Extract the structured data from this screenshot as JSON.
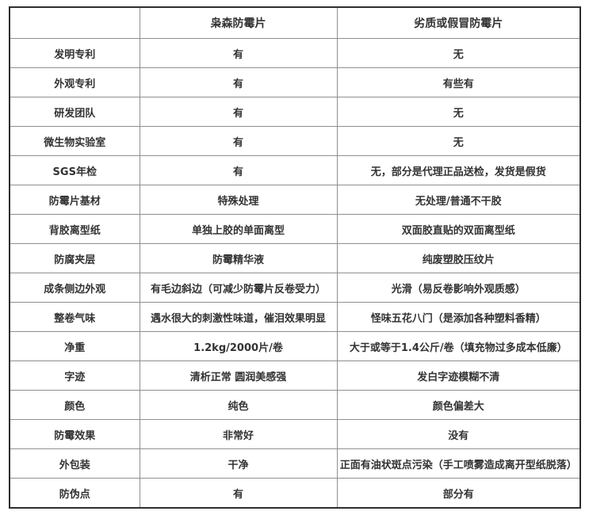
{
  "table": {
    "header": {
      "corner": "",
      "brand_col": "枭森防霉片",
      "fake_col": "劣质或假冒防霉片"
    },
    "rows": [
      {
        "label": "发明专利",
        "brand": "有",
        "fake": "无"
      },
      {
        "label": "外观专利",
        "brand": "有",
        "fake": "有些有"
      },
      {
        "label": "研发团队",
        "brand": "有",
        "fake": "无"
      },
      {
        "label": "微生物实验室",
        "brand": "有",
        "fake": "无"
      },
      {
        "label": "SGS年检",
        "brand": "有",
        "fake": "无，部分是代理正品送检，发货是假货"
      },
      {
        "label": "防霉片基材",
        "brand": "特殊处理",
        "fake": "无处理/普通不干胶"
      },
      {
        "label": "背胶离型纸",
        "brand": "单独上胶的单面离型",
        "fake": "双面胶直贴的双面离型纸"
      },
      {
        "label": "防腐夹层",
        "brand": "防霉精华液",
        "fake": "纯废塑胶压纹片"
      },
      {
        "label": "成条侧边外观",
        "brand": "有毛边斜边（可减少防霉片反卷受力）",
        "fake": "光滑（易反卷影响外观质感）"
      },
      {
        "label": "整卷气味",
        "brand": "遇水很大的刺激性味道，催泪效果明显",
        "fake": "怪味五花八门（是添加各种塑料香精）"
      },
      {
        "label": "净重",
        "brand": "1.2kg/2000片/卷",
        "fake": "大于或等于1.4公斤/卷（填充物过多成本低廉）"
      },
      {
        "label": "字迹",
        "brand": "清析正常 圆润美感强",
        "fake": "发白字迹模糊不清"
      },
      {
        "label": "颜色",
        "brand": "纯色",
        "fake": "颜色偏差大"
      },
      {
        "label": "防霉效果",
        "brand": "非常好",
        "fake": "没有"
      },
      {
        "label": "外包装",
        "brand": "干净",
        "fake": "正面有油状斑点污染（手工喷雾造成离开型纸脱落）"
      },
      {
        "label": "防伪点",
        "brand": "有",
        "fake": "部分有"
      }
    ]
  }
}
